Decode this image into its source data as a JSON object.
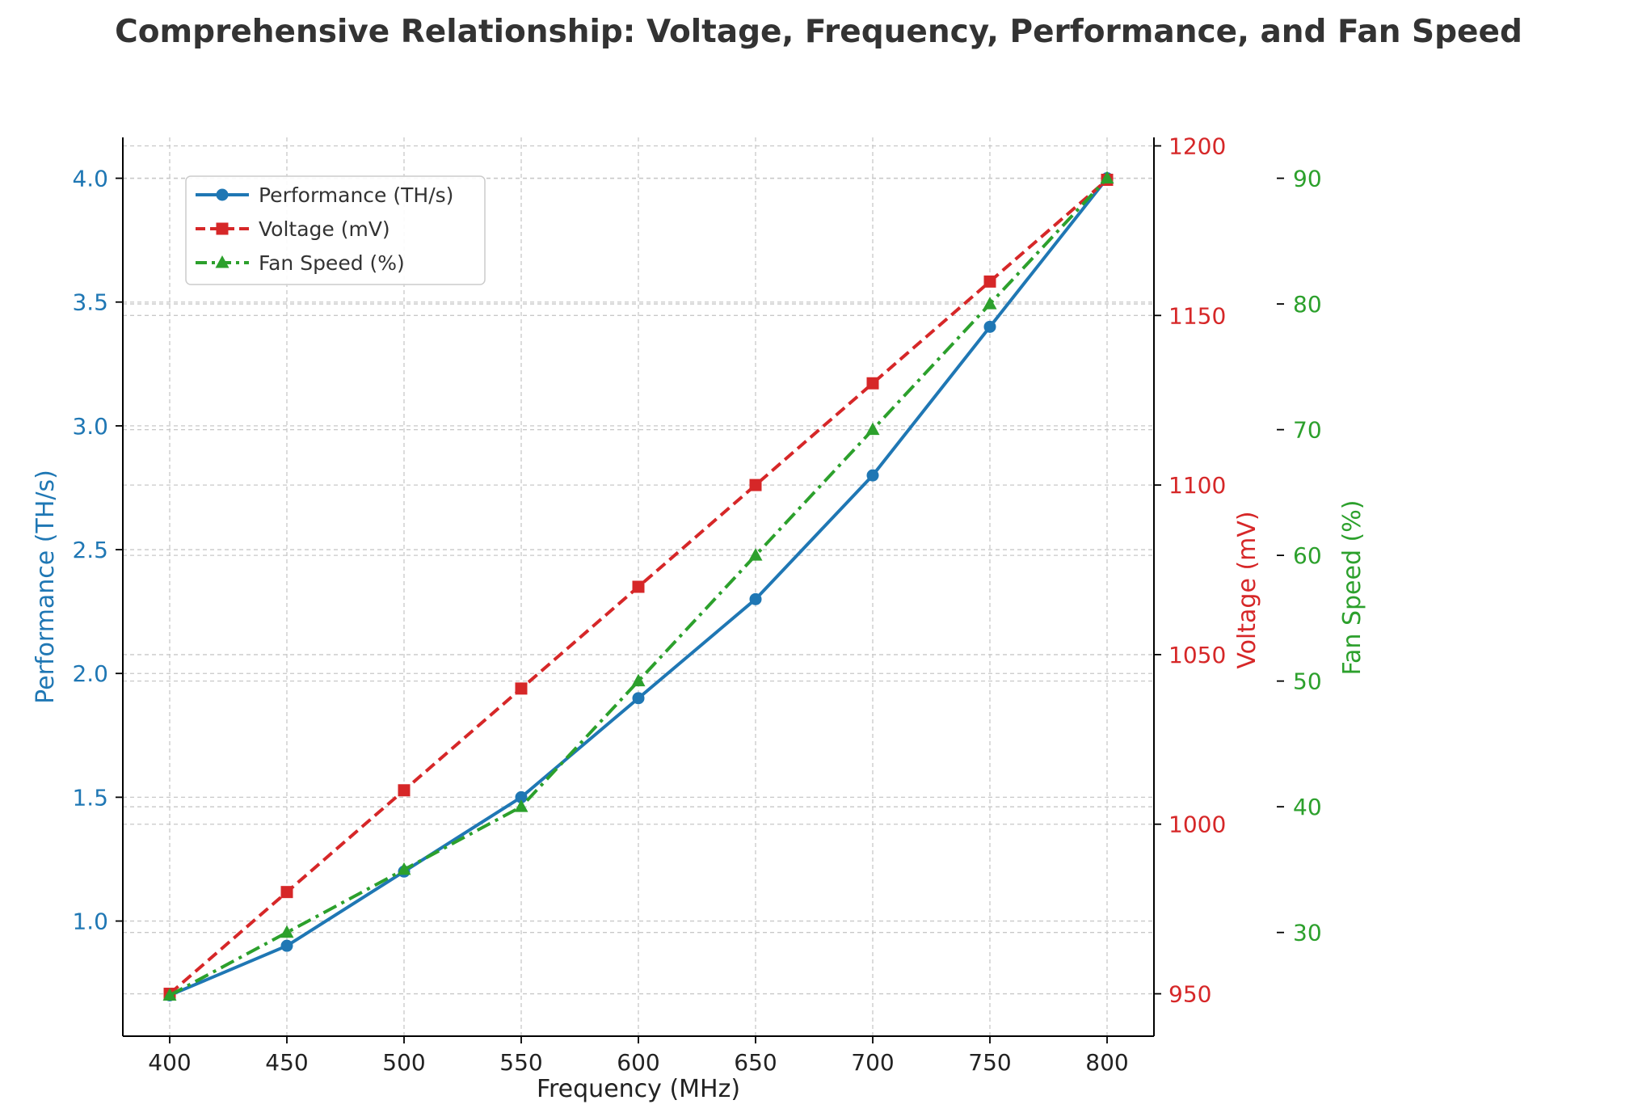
{
  "chart_data": {
    "type": "line",
    "title": "Comprehensive Relationship: Voltage, Frequency, Performance, and Fan Speed",
    "xlabel": "Frequency (MHz)",
    "x": [
      400,
      450,
      500,
      550,
      600,
      650,
      700,
      750,
      800
    ],
    "xlim": [
      380,
      820
    ],
    "x_ticks": [
      400,
      450,
      500,
      550,
      600,
      650,
      700,
      750,
      800
    ],
    "grid": true,
    "legend_position": "top-left",
    "axes": [
      {
        "name": "performance",
        "side": "left",
        "label": "Performance (TH/s)",
        "color": "#1f77b4",
        "ylim": [
          0.535,
          4.165
        ],
        "ticks": [
          1.0,
          1.5,
          2.0,
          2.5,
          3.0,
          3.5,
          4.0
        ],
        "tick_labels": [
          "1.0",
          "1.5",
          "2.0",
          "2.5",
          "3.0",
          "3.5",
          "4.0"
        ]
      },
      {
        "name": "voltage",
        "side": "right",
        "label": "Voltage (mV)",
        "color": "#d62728",
        "ylim": [
          937.5,
          1202.5
        ],
        "ticks": [
          950,
          1000,
          1050,
          1100,
          1150,
          1200
        ],
        "tick_labels": [
          "950",
          "1000",
          "1050",
          "1100",
          "1150",
          "1200"
        ]
      },
      {
        "name": "fan",
        "side": "right-outer",
        "label": "Fan Speed (%)",
        "color": "#2ca02c",
        "ylim": [
          21.75,
          93.25
        ],
        "ticks": [
          30,
          40,
          50,
          60,
          70,
          80,
          90
        ],
        "tick_labels": [
          "30",
          "40",
          "50",
          "60",
          "70",
          "80",
          "90"
        ]
      }
    ],
    "series": [
      {
        "name": "Performance (TH/s)",
        "axis": "performance",
        "color": "#1f77b4",
        "marker": "circle",
        "style": "solid",
        "values": [
          0.7,
          0.9,
          1.2,
          1.5,
          1.9,
          2.3,
          2.8,
          3.4,
          4.0
        ]
      },
      {
        "name": "Voltage (mV)",
        "axis": "voltage",
        "color": "#d62728",
        "marker": "square",
        "style": "dashed",
        "values": [
          950,
          980,
          1010,
          1040,
          1070,
          1100,
          1130,
          1160,
          1190
        ]
      },
      {
        "name": "Fan Speed (%)",
        "axis": "fan",
        "color": "#2ca02c",
        "marker": "triangle",
        "style": "dashdot",
        "values": [
          25,
          30,
          35,
          40,
          50,
          60,
          70,
          80,
          90
        ]
      }
    ]
  }
}
